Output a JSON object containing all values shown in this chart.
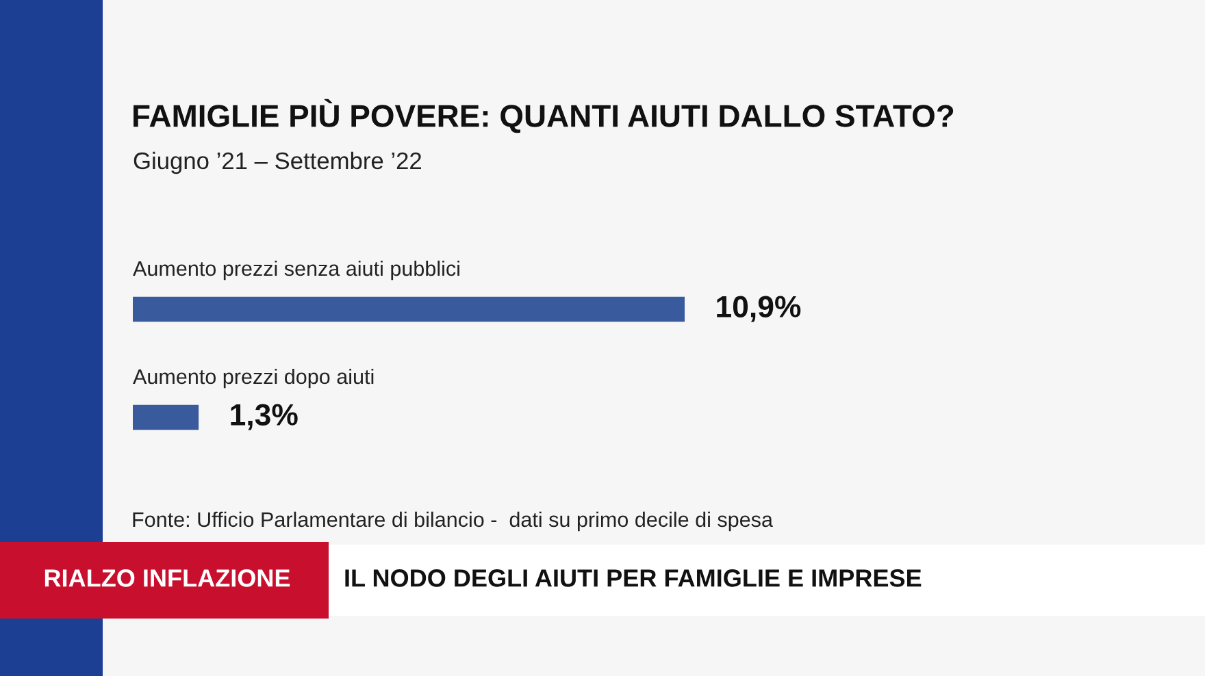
{
  "chart_data": {
    "type": "bar",
    "orientation": "horizontal",
    "title": "FAMIGLIE PIÙ POVERE: QUANTI AIUTI DALLO STATO?",
    "subtitle": "Giugno ’21 – Settembre ’22",
    "categories": [
      "Aumento prezzi senza aiuti pubblici",
      "Aumento prezzi dopo aiuti"
    ],
    "values": [
      10.9,
      1.3
    ],
    "color": "#3a5a9e",
    "value_labels": [
      "10,9%",
      "1,3%"
    ],
    "annotations": [
      "Fonte: Ufficio Parlamentare di bilancio -  dati su primo decile di spesa",
      "RIALZO INFLAZIONE",
      "IL NODO DEGLI AIUTI PER FAMIGLIE E IMPRESE"
    ]
  }
}
